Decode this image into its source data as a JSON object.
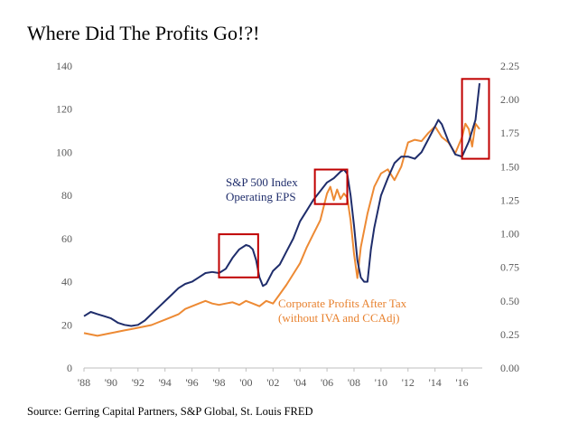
{
  "title": "Where Did The Profits Go!?!",
  "source": "Source: Gerring Capital Partners, S&P Global, St. Louis FRED",
  "colors": {
    "eps": "#1f2d6b",
    "profits": "#ed8a34",
    "highlight_box": "#c00000",
    "axis_text": "#595959"
  },
  "chart_data": {
    "type": "line",
    "title": "Where Did The Profits Go!?!",
    "x_tick_labels": [
      "'88",
      "'90",
      "'92",
      "'94",
      "'96",
      "'98",
      "'00",
      "'02",
      "'04",
      "'06",
      "'08",
      "'10",
      "'12",
      "'14",
      "'16"
    ],
    "xlim": [
      1988,
      2017.5
    ],
    "y_left": {
      "lim": [
        0,
        140
      ],
      "ticks": [
        "0",
        "20",
        "40",
        "60",
        "80",
        "100",
        "120",
        "140"
      ]
    },
    "y_right": {
      "lim": [
        0,
        2.25
      ],
      "ticks": [
        "0.00",
        "0.25",
        "0.50",
        "0.75",
        "1.00",
        "1.25",
        "1.50",
        "1.75",
        "2.00",
        "2.25"
      ]
    },
    "grid": false,
    "series": [
      {
        "name": "S&P 500 Index Operating EPS",
        "label_lines": [
          "S&P 500 Index",
          "Operating EPS"
        ],
        "axis": "left",
        "color": "#1f2d6b",
        "x": [
          1988,
          1988.5,
          1989,
          1989.5,
          1990,
          1990.5,
          1991,
          1991.5,
          1992,
          1992.5,
          1993,
          1993.5,
          1994,
          1994.5,
          1995,
          1995.5,
          1996,
          1996.5,
          1997,
          1997.5,
          1998,
          1998.5,
          1999,
          1999.5,
          2000,
          2000.25,
          2000.5,
          2000.75,
          2001,
          2001.25,
          2001.5,
          2002,
          2002.5,
          2003,
          2003.5,
          2004,
          2004.5,
          2005,
          2005.5,
          2006,
          2006.5,
          2007,
          2007.25,
          2007.5,
          2007.75,
          2008,
          2008.25,
          2008.5,
          2008.75,
          2009,
          2009.25,
          2009.5,
          2010,
          2010.5,
          2011,
          2011.5,
          2012,
          2012.5,
          2013,
          2013.5,
          2014,
          2014.25,
          2014.5,
          2015,
          2015.5,
          2016,
          2016.5,
          2017,
          2017.3
        ],
        "values": [
          24,
          26,
          25,
          24,
          23,
          21,
          20,
          19.5,
          20,
          22,
          25,
          28,
          31,
          34,
          37,
          39,
          40,
          42,
          44,
          44.5,
          44,
          46,
          51,
          55,
          57,
          56.5,
          55,
          50,
          42,
          38,
          39,
          45,
          48,
          54,
          60,
          68,
          73,
          78,
          82,
          86,
          88,
          91,
          92,
          90,
          80,
          66,
          50,
          42,
          40,
          40,
          55,
          65,
          80,
          88,
          95,
          98,
          98,
          97,
          100,
          106,
          112,
          115,
          113,
          105,
          99,
          98,
          105,
          115,
          132
        ]
      },
      {
        "name": "Corporate Profits After Tax (without IVA and CCAdj)",
        "label_lines": [
          "Corporate Profits After Tax",
          "(without IVA and CCAdj)"
        ],
        "axis": "right",
        "color": "#ed8a34",
        "x": [
          1988,
          1988.5,
          1989,
          1989.5,
          1990,
          1990.5,
          1991,
          1991.5,
          1992,
          1992.5,
          1993,
          1993.5,
          1994,
          1994.5,
          1995,
          1995.5,
          1996,
          1996.5,
          1997,
          1997.5,
          1998,
          1998.5,
          1999,
          1999.5,
          2000,
          2000.5,
          2001,
          2001.5,
          2002,
          2002.5,
          2003,
          2003.5,
          2004,
          2004.5,
          2005,
          2005.5,
          2006,
          2006.25,
          2006.5,
          2006.75,
          2007,
          2007.25,
          2007.5,
          2007.75,
          2008,
          2008.25,
          2008.5,
          2009,
          2009.5,
          2010,
          2010.5,
          2011,
          2011.5,
          2012,
          2012.5,
          2013,
          2013.5,
          2014,
          2014.5,
          2015,
          2015.5,
          2016,
          2016.25,
          2016.5,
          2016.75,
          2017,
          2017.3
        ],
        "values": [
          0.26,
          0.25,
          0.24,
          0.25,
          0.26,
          0.27,
          0.28,
          0.29,
          0.3,
          0.31,
          0.32,
          0.34,
          0.36,
          0.38,
          0.4,
          0.44,
          0.46,
          0.48,
          0.5,
          0.48,
          0.47,
          0.48,
          0.49,
          0.47,
          0.5,
          0.48,
          0.46,
          0.5,
          0.48,
          0.55,
          0.62,
          0.7,
          0.78,
          0.9,
          1.0,
          1.1,
          1.3,
          1.35,
          1.25,
          1.33,
          1.26,
          1.3,
          1.27,
          1.1,
          0.85,
          0.67,
          0.9,
          1.15,
          1.35,
          1.45,
          1.48,
          1.4,
          1.5,
          1.68,
          1.7,
          1.69,
          1.75,
          1.8,
          1.72,
          1.68,
          1.6,
          1.72,
          1.82,
          1.78,
          1.65,
          1.82,
          1.78
        ]
      }
    ],
    "highlights": [
      {
        "x_range": [
          1998,
          2000.9
        ],
        "y_range": [
          42,
          62
        ]
      },
      {
        "x_range": [
          2005.1,
          2007.5
        ],
        "y_range": [
          76,
          92
        ]
      },
      {
        "x_range": [
          2016,
          2018
        ],
        "y_range": [
          97,
          134
        ]
      }
    ]
  }
}
